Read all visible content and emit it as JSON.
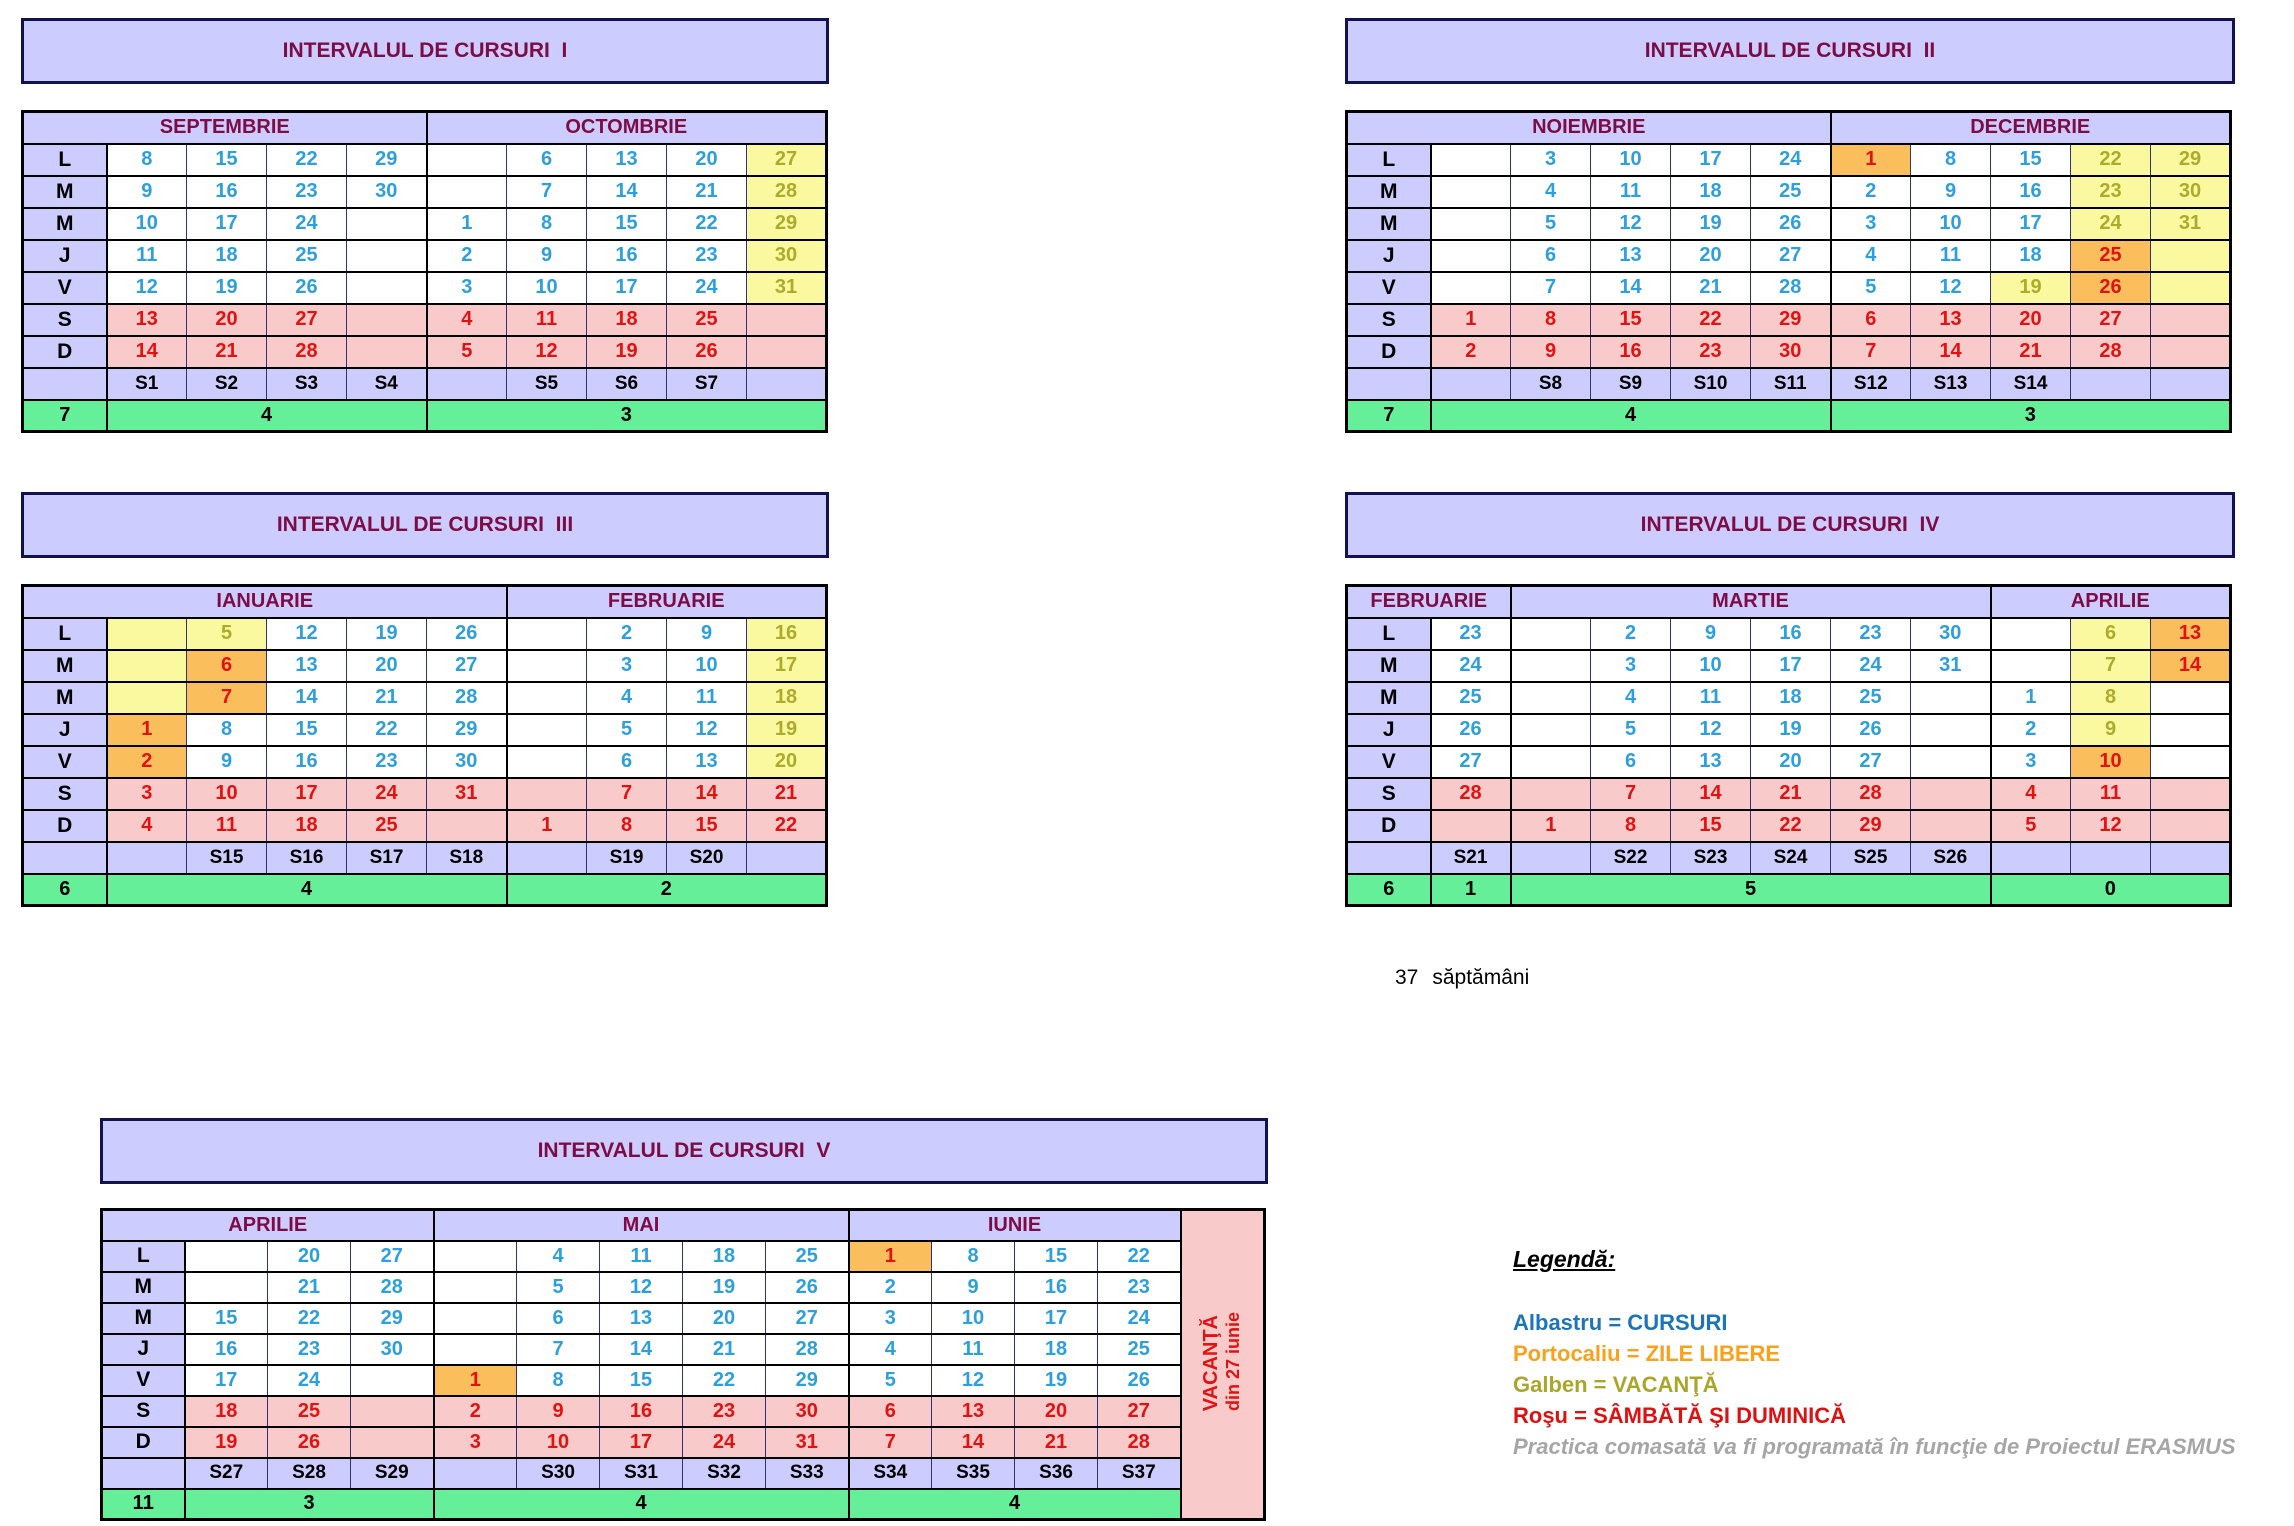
{
  "day_labels": [
    "L",
    "M",
    "M",
    "J",
    "V",
    "S",
    "D"
  ],
  "weekend_rows": [
    5,
    6
  ],
  "tables": [
    {
      "id": "I",
      "title": "INTERVALUL DE CURSURI  I",
      "months": [
        {
          "name": "SEPTEMBRIE",
          "cols": 4
        },
        {
          "name": "OCTOMBRIE",
          "cols": 5
        }
      ],
      "rows": [
        "8,15,22,29,.,6,13,20,27y",
        "9,16,23,30,.,7,14,21,28y",
        "10,17,24,.,1,8,15,22,29y",
        "11,18,25,.,2,9,16,23,30y",
        "12,19,26,.,3,10,17,24,31y",
        "13,20,27,.,4,11,18,25,.",
        "14,21,28,.,5,12,19,26,."
      ],
      "weeks": "S1,S2,S3,S4,,S5,S6,S7,",
      "totals": {
        "head": "7",
        "parts": [
          {
            "v": "4",
            "span": 4
          },
          {
            "v": "3",
            "span": 5
          }
        ]
      }
    },
    {
      "id": "II",
      "title": "INTERVALUL DE CURSURI  II",
      "months": [
        {
          "name": "NOIEMBRIE",
          "cols": 5
        },
        {
          "name": "DECEMBRIE",
          "cols": 5
        }
      ],
      "rows": [
        ".,3,10,17,24,1o,8,15,22y,29y",
        ".,4,11,18,25,2,9,16,23y,30y",
        ".,5,12,19,26,3,10,17,24y,31y",
        ".,6,13,20,27,4,11,18,25o,~",
        ".,7,14,21,28,5,12,19y,26o,~",
        "1,8,15,22,29,6,13,20,27,.",
        "2,9,16,23,30,7,14,21,28,."
      ],
      "weeks": ",S8,S9,S10,S11,S12,S13,S14,,",
      "totals": {
        "head": "7",
        "parts": [
          {
            "v": "4",
            "span": 5
          },
          {
            "v": "3",
            "span": 5
          }
        ]
      }
    },
    {
      "id": "III",
      "title": "INTERVALUL DE CURSURI  III",
      "months": [
        {
          "name": "IANUARIE",
          "cols": 5
        },
        {
          "name": "FEBRUARIE",
          "cols": 4
        }
      ],
      "rows": [
        "~,5y,12,19,26,.,2,9,16y",
        "~,6o,13,20,27,.,3,10,17y",
        "~,7o,14,21,28,.,4,11,18y",
        "1o,8,15,22,29,.,5,12,19y",
        "2o,9,16,23,30,.,6,13,20y",
        "3,10,17,24,31,.,7,14,21",
        "4,11,18,25,.,1,8,15,22"
      ],
      "weeks": ",S15,S16,S17,S18,,S19,S20,",
      "totals": {
        "head": "6",
        "parts": [
          {
            "v": "4",
            "span": 5
          },
          {
            "v": "2",
            "span": 4
          }
        ]
      }
    },
    {
      "id": "IV",
      "title": "INTERVALUL DE CURSURI  IV",
      "months": [
        {
          "name": "FEBRUARIE",
          "cols": 1
        },
        {
          "name": "MARTIE",
          "cols": 6
        },
        {
          "name": "APRILIE",
          "cols": 3
        }
      ],
      "rows": [
        "23,.,2,9,16,23,30,.,6y,13o",
        "24,.,3,10,17,24,31,.,7y,14o",
        "25,.,4,11,18,25,.,1,8y,.",
        "26,.,5,12,19,26,.,2,9y,.",
        "27,.,6,13,20,27,.,3,10o,.",
        "28,.,7,14,21,28,.,4,11,.",
        ".,1,8,15,22,29,.,5,12,."
      ],
      "weeks": "S21,,S22,S23,S24,S25,S26,,,",
      "totals": {
        "head": "6",
        "parts": [
          {
            "v": "1",
            "span": 1
          },
          {
            "v": "5",
            "span": 6
          },
          {
            "v": "0",
            "span": 3
          }
        ]
      }
    },
    {
      "id": "V",
      "title": "INTERVALUL DE CURSURI  V",
      "months": [
        {
          "name": "APRILIE",
          "cols": 3
        },
        {
          "name": "MAI",
          "cols": 5
        },
        {
          "name": "IUNIE",
          "cols": 4
        }
      ],
      "vacation": {
        "line1": "VACANŢĂ",
        "line2": "din 27 iunie"
      },
      "rows": [
        ".,20,27,.,4,11,18,25,1o,8,15,22",
        ".,21,28,.,5,12,19,26,2,9,16,23",
        "15,22,29,.,6,13,20,27,3,10,17,24",
        "16,23,30,.,7,14,21,28,4,11,18,25",
        "17,24,.,1o,8,15,22,29,5,12,19,26",
        "18,25,.,2,9,16,23,30,6,13,20,27",
        "19,26,.,3,10,17,24,31,7,14,21,28"
      ],
      "weeks": "S27,S28,S29,,S30,S31,S32,S33,S34,S35,S36,S37",
      "totals": {
        "head": "11",
        "parts": [
          {
            "v": "3",
            "span": 3
          },
          {
            "v": "4",
            "span": 5
          },
          {
            "v": "4",
            "span": 4
          }
        ]
      }
    }
  ],
  "weeks_note": {
    "value": "37",
    "label": "săptămâni"
  },
  "legend": {
    "heading": "Legendă:",
    "items": [
      {
        "text": "Albastru = CURSURI",
        "color": "#1b75bc",
        "italic": false
      },
      {
        "text": "Portocaliu = ZILE LIBERE",
        "color": "#f9a11b",
        "italic": false
      },
      {
        "text": "Galben = VACANŢĂ",
        "color": "#a9a72b",
        "italic": false
      },
      {
        "text": "Roşu = SÂMBĂTĂ ŞI DUMINICĂ",
        "color": "#dd1111",
        "italic": false
      },
      {
        "text": "Practica comasată va fi programată în funcţie de Proiectul ERASMUS",
        "color": "#a6a6a6",
        "italic": true
      }
    ]
  },
  "colors": {
    "courses_blue": "#2e9fdb",
    "free_day_orange_bg": "#fbbe5d",
    "vacation_yellow_bg": "#fbf99f",
    "weekend_pink_bg": "#f9caca",
    "weekend_red_text": "#e11212",
    "header_purple_bg": "#ccccff",
    "month_maroon_text": "#7d0c45",
    "totals_green_bg": "#66ef99"
  }
}
